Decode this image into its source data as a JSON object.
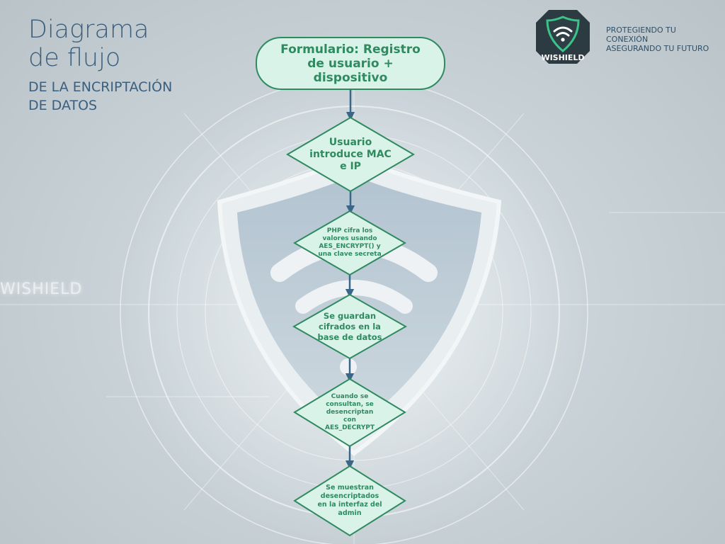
{
  "page": {
    "title_main": "Diagrama\nde flujo",
    "title_sub": "DE LA ENCRIPTACIÓN\n DE DATOS",
    "watermark": "WISHIELD"
  },
  "brand": {
    "logo_text": "WISHIELD",
    "tagline": "PROTEGIENDO TU\nCONEXIÓN\nASEGURANDO TU FUTURO"
  },
  "flow": {
    "start": "Formulario: Registro\nde usuario +\ndispositivo",
    "steps": [
      "Usuario\nintroduce MAC\ne IP",
      "PHP cifra los\nvalores usando\nAES_ENCRYPT() y\nuna clave secreta",
      "Se guardan\ncifrados en la\nbase de datos",
      "Cuando se\nconsultan, se\ndesencriptan\ncon\nAES_DECRYPT",
      "Se muestran\ndesencriptados\nen la interfaz del\nadmin"
    ]
  },
  "colors": {
    "node_fill": "#d9f3e8",
    "node_stroke": "#2f8a60",
    "node_text": "#2f8a60",
    "arrow": "#3b6688",
    "title": "#3b5f7e"
  }
}
